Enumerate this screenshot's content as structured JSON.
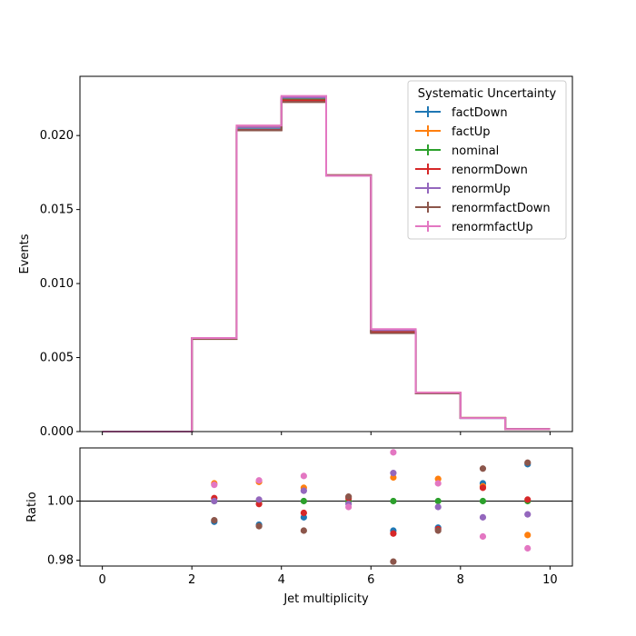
{
  "chart_data": [
    {
      "type": "line",
      "subtype": "step-histogram",
      "ylabel": "Events",
      "xlim": [
        -0.5,
        10.5
      ],
      "ylim": [
        0,
        0.024
      ],
      "x_tick_labels": [
        "0",
        "2",
        "4",
        "6",
        "8",
        "10"
      ],
      "y_tick_labels": [
        "0.000",
        "0.005",
        "0.010",
        "0.015",
        "0.020"
      ],
      "x_ticks": [
        0,
        2,
        4,
        6,
        8,
        10
      ],
      "y_ticks": [
        0,
        0.005,
        0.01,
        0.015,
        0.02
      ],
      "bin_edges": [
        0,
        1,
        2,
        3,
        4,
        5,
        6,
        7,
        8,
        9,
        10
      ],
      "legend": {
        "title": "Systematic Uncertainty",
        "placement": "top-right"
      },
      "series": [
        {
          "name": "factDown",
          "color": "#1f77b4",
          "values": [
            0,
            0,
            0.00628,
            0.0204,
            0.02238,
            0.01732,
            0.00672,
            0.0026,
            0.00091,
            0.00018
          ]
        },
        {
          "name": "factUp",
          "color": "#ff7f0e",
          "values": [
            0,
            0,
            0.00632,
            0.02066,
            0.02258,
            0.01732,
            0.00685,
            0.00263,
            0.00093,
            0.00017
          ]
        },
        {
          "name": "nominal",
          "color": "#2ca02c",
          "values": [
            0,
            0,
            0.00629,
            0.02053,
            0.02248,
            0.0173,
            0.00679,
            0.00261,
            0.00092,
            0.00018
          ]
        },
        {
          "name": "renormDown",
          "color": "#d62728",
          "values": [
            0,
            0,
            0.0063,
            0.02037,
            0.02238,
            0.01732,
            0.00672,
            0.0026,
            0.00092,
            0.00018
          ]
        },
        {
          "name": "renormUp",
          "color": "#9467bd",
          "values": [
            0,
            0,
            0.00629,
            0.02055,
            0.02256,
            0.01728,
            0.00685,
            0.0026,
            0.00091,
            0.00018
          ]
        },
        {
          "name": "renormfactDown",
          "color": "#8c564b",
          "values": [
            0,
            0,
            0.00625,
            0.02035,
            0.02226,
            0.01732,
            0.00665,
            0.00258,
            0.00093,
            0.00018
          ]
        },
        {
          "name": "renormfactUp",
          "color": "#e377c2",
          "values": [
            0,
            0,
            0.00632,
            0.02068,
            0.02267,
            0.01728,
            0.00692,
            0.00263,
            0.00091,
            0.00017
          ]
        }
      ]
    },
    {
      "type": "scatter",
      "xlabel": "Jet multiplicity",
      "ylabel": "Ratio",
      "xlim": [
        -0.5,
        10.5
      ],
      "ylim": [
        0.978,
        1.018
      ],
      "x_tick_labels": [
        "0",
        "2",
        "4",
        "6",
        "8",
        "10"
      ],
      "y_tick_labels": [
        "0.98",
        "1.00"
      ],
      "x_ticks": [
        0,
        2,
        4,
        6,
        8,
        10
      ],
      "y_ticks": [
        0.98,
        1.0
      ],
      "reference_line": 1.0,
      "x": [
        2.5,
        3.5,
        4.5,
        5.5,
        6.5,
        7.5,
        8.5,
        9.5
      ],
      "series": [
        {
          "name": "factDown",
          "color": "#1f77b4",
          "values": [
            0.993,
            0.992,
            0.9945,
            1.0,
            0.99,
            0.991,
            1.006,
            1.0125
          ]
        },
        {
          "name": "factUp",
          "color": "#ff7f0e",
          "values": [
            1.006,
            1.0065,
            1.0045,
            1.0,
            1.008,
            1.0075,
            1.005,
            0.9885
          ]
        },
        {
          "name": "nominal",
          "color": "#2ca02c",
          "values": [
            1.0,
            1.0,
            1.0,
            1.0,
            1.0,
            1.0,
            1.0,
            1.0
          ]
        },
        {
          "name": "renormDown",
          "color": "#d62728",
          "values": [
            1.001,
            0.999,
            0.996,
            1.001,
            0.989,
            0.9905,
            1.0045,
            1.0005
          ]
        },
        {
          "name": "renormUp",
          "color": "#9467bd",
          "values": [
            1.0,
            1.0005,
            1.0035,
            0.999,
            1.0095,
            0.998,
            0.9945,
            0.9955
          ]
        },
        {
          "name": "renormfactDown",
          "color": "#8c564b",
          "values": [
            0.9935,
            0.9915,
            0.99,
            1.0015,
            0.9795,
            0.99,
            1.011,
            1.013
          ]
        },
        {
          "name": "renormfactUp",
          "color": "#e377c2",
          "values": [
            1.0055,
            1.007,
            1.0085,
            0.998,
            1.0165,
            1.006,
            0.988,
            0.984
          ]
        }
      ]
    }
  ]
}
